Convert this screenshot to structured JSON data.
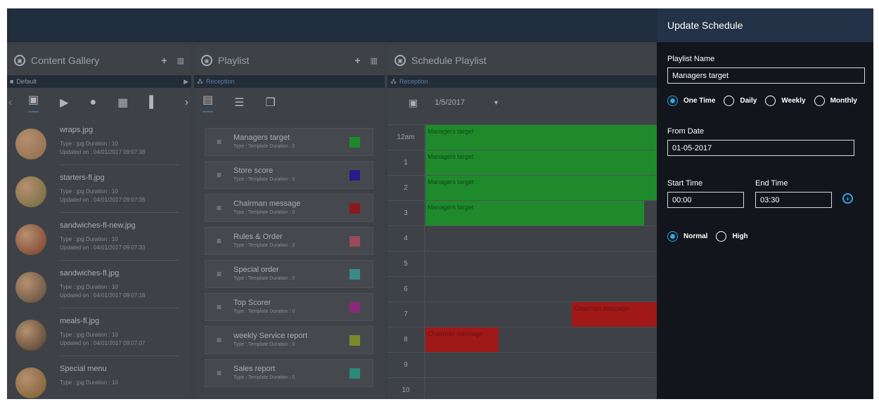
{
  "gallery": {
    "title": "Content Gallery",
    "folder": "Default",
    "items": [
      {
        "name": "wraps.jpg",
        "meta": "Type : jpg   Duration : 10",
        "updated": "Updated on : 04/01/2017 09:07:38",
        "color": "#8a6a4a"
      },
      {
        "name": "starters-fl.jpg",
        "meta": "Type : jpg   Duration : 10",
        "updated": "Updated on : 04/01/2017 09:07:36",
        "color": "#6a6a3a"
      },
      {
        "name": "sandwiches-fl-new.jpg",
        "meta": "Type : jpg   Duration : 10",
        "updated": "Updated on : 04/01/2017 09:07:33",
        "color": "#7a3a2a"
      },
      {
        "name": "sandwiches-fl.jpg",
        "meta": "Type : jpg   Duration : 10",
        "updated": "Updated on : 04/01/2017 09:07:18",
        "color": "#5a4a3a"
      },
      {
        "name": "meals-fl.jpg",
        "meta": "Type : jpg   Duration : 10",
        "updated": "Updated on : 04/01/2017 09:07:07",
        "color": "#4a3a2a"
      },
      {
        "name": "Special menu",
        "meta": "Type : jpg   Duration : 10",
        "updated": "",
        "color": "#7a5a2a"
      }
    ]
  },
  "playlist": {
    "title": "Playlist",
    "location": "Reception",
    "items": [
      {
        "name": "Managers target",
        "type": "Type : Template Duration : 0",
        "color": "#1d8a2a"
      },
      {
        "name": "Store score",
        "type": "Type : Template Duration : 0",
        "color": "#2a1a8a"
      },
      {
        "name": "Chairman message",
        "type": "Type : Template Duration : 0",
        "color": "#8a1a1a"
      },
      {
        "name": "Rules & Order",
        "type": "Type : Template Duration : 0",
        "color": "#9a4a5a"
      },
      {
        "name": "Special order",
        "type": "Type : Template Duration : 0",
        "color": "#3a8a8a"
      },
      {
        "name": "Top Scorer",
        "type": "Type : Template Duration : 0",
        "color": "#8a2a7a"
      },
      {
        "name": "weekly Service report",
        "type": "Type : Template Duration : 0",
        "color": "#7a8a2a"
      },
      {
        "name": "Sales report",
        "type": "Type : Template Duration : 0",
        "color": "#2a8a7a"
      }
    ]
  },
  "schedule": {
    "title": "Schedule Playlist",
    "location": "Reception",
    "date": "1/5/2017",
    "hours": [
      "12am",
      "1",
      "2",
      "3",
      "4",
      "5",
      "6",
      "7",
      "8",
      "9",
      "10"
    ],
    "events": [
      {
        "label": "Managers target",
        "color": "#1f8a2c"
      },
      {
        "label": "Managers target",
        "color": "#1f8a2c"
      },
      {
        "label": "Managers target",
        "color": "#1f8a2c"
      },
      {
        "label": "Managers target",
        "color": "#1f8a2c"
      },
      {
        "label": "Chairman message",
        "color": "#a01818"
      },
      {
        "label": "Chairman message",
        "color": "#a01818"
      }
    ]
  },
  "update": {
    "title": "Update Schedule",
    "playlist_name_label": "Playlist Name",
    "playlist_name_value": "Managers target",
    "recurrence": [
      "One Time",
      "Daily",
      "Weekly",
      "Monthly"
    ],
    "recurrence_selected": "One Time",
    "from_date_label": "From Date",
    "from_date_value": "01-05-2017",
    "start_time_label": "Start Time",
    "start_time_value": "00:00",
    "end_time_label": "End Time",
    "end_time_value": "03:30",
    "priority": [
      "Normal",
      "High"
    ],
    "priority_selected": "Normal"
  }
}
